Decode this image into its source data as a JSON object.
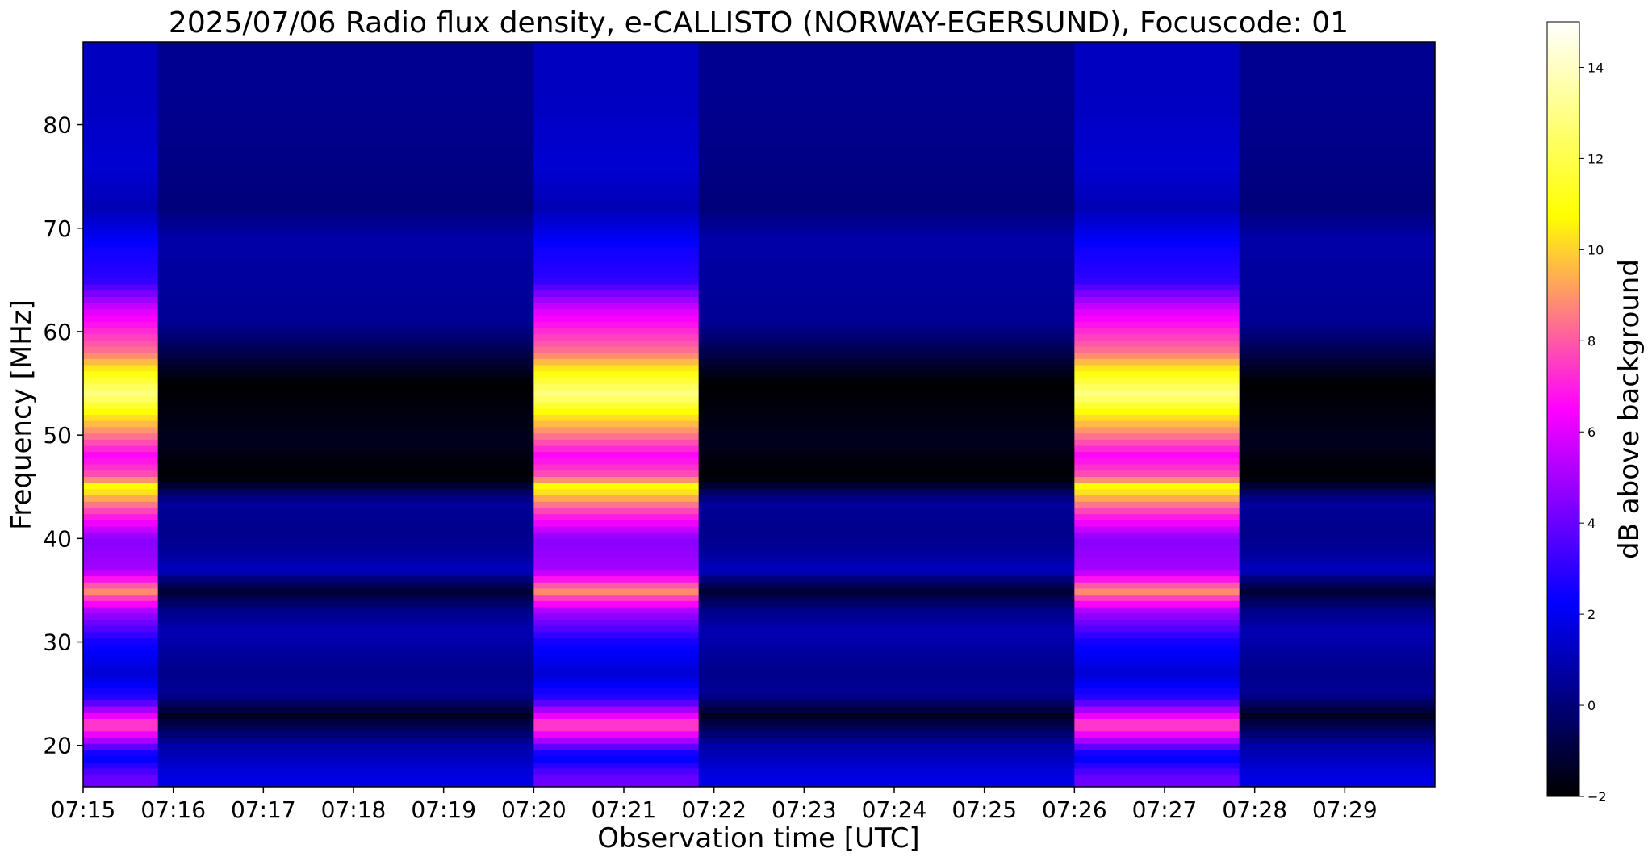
{
  "chart_data": {
    "type": "heatmap",
    "title": "2025/07/06  Radio flux density, e-CALLISTO (NORWAY-EGERSUND), Focuscode: 01",
    "xlabel": "Observation time [UTC]",
    "ylabel": "Frequency [MHz]",
    "colorbar_label": "dB above background",
    "x_range_minutes": [
      0,
      15
    ],
    "x_ticks": [
      {
        "minute": 0,
        "label": "07:15"
      },
      {
        "minute": 1,
        "label": "07:16"
      },
      {
        "minute": 2,
        "label": "07:17"
      },
      {
        "minute": 3,
        "label": "07:18"
      },
      {
        "minute": 4,
        "label": "07:19"
      },
      {
        "minute": 5,
        "label": "07:20"
      },
      {
        "minute": 6,
        "label": "07:21"
      },
      {
        "minute": 7,
        "label": "07:22"
      },
      {
        "minute": 8,
        "label": "07:23"
      },
      {
        "minute": 9,
        "label": "07:24"
      },
      {
        "minute": 10,
        "label": "07:25"
      },
      {
        "minute": 11,
        "label": "07:26"
      },
      {
        "minute": 12,
        "label": "07:27"
      },
      {
        "minute": 13,
        "label": "07:28"
      },
      {
        "minute": 14,
        "label": "07:29"
      }
    ],
    "ylim": [
      16,
      88
    ],
    "y_ticks": [
      {
        "value": 20,
        "label": "20"
      },
      {
        "value": 30,
        "label": "30"
      },
      {
        "value": 40,
        "label": "40"
      },
      {
        "value": 50,
        "label": "50"
      },
      {
        "value": 60,
        "label": "60"
      },
      {
        "value": 70,
        "label": "70"
      },
      {
        "value": 80,
        "label": "80"
      }
    ],
    "colorbar_range": [
      -2,
      15
    ],
    "colorbar_ticks": [
      {
        "value": -2,
        "label": "−2"
      },
      {
        "value": 0,
        "label": "0"
      },
      {
        "value": 2,
        "label": "2"
      },
      {
        "value": 4,
        "label": "4"
      },
      {
        "value": 6,
        "label": "6"
      },
      {
        "value": 8,
        "label": "8"
      },
      {
        "value": 10,
        "label": "10"
      },
      {
        "value": 12,
        "label": "12"
      },
      {
        "value": 14,
        "label": "14"
      }
    ],
    "colormap": [
      "#000000",
      "#0000ff",
      "#ff00ff",
      "#ffff00",
      "#ffffff"
    ],
    "calibration_segments_minutes": [
      [
        0,
        0.83
      ],
      [
        5.0,
        6.83
      ],
      [
        11.0,
        12.83
      ]
    ],
    "calibration_band_levels_db": [
      {
        "freq": 83,
        "db": 1.2
      },
      {
        "freq": 76,
        "db": 1.5
      },
      {
        "freq": 72,
        "db": 1.0
      },
      {
        "freq": 68,
        "db": 2.5
      },
      {
        "freq": 65,
        "db": 3.0
      },
      {
        "freq": 62,
        "db": 6.0
      },
      {
        "freq": 58,
        "db": 8.5
      },
      {
        "freq": 56,
        "db": 11.0
      },
      {
        "freq": 54,
        "db": 13.0
      },
      {
        "freq": 52,
        "db": 10.5
      },
      {
        "freq": 50.5,
        "db": 9.0
      },
      {
        "freq": 48,
        "db": 6.5
      },
      {
        "freq": 46,
        "db": 8.0
      },
      {
        "freq": 45,
        "db": 11.0
      },
      {
        "freq": 43,
        "db": 8.0
      },
      {
        "freq": 40,
        "db": 4.5
      },
      {
        "freq": 37,
        "db": 5.0
      },
      {
        "freq": 35,
        "db": 9.0
      },
      {
        "freq": 33,
        "db": 5.0
      },
      {
        "freq": 30,
        "db": 2.5
      },
      {
        "freq": 27,
        "db": 1.5
      },
      {
        "freq": 24.5,
        "db": 3.0
      },
      {
        "freq": 22,
        "db": 8.0
      },
      {
        "freq": 19,
        "db": 2.0
      },
      {
        "freq": 17,
        "db": 4.0
      }
    ],
    "background_band_levels_db": [
      {
        "freq": 83,
        "db": 0.4
      },
      {
        "freq": 76,
        "db": 0.2
      },
      {
        "freq": 72,
        "db": 0.0
      },
      {
        "freq": 69,
        "db": 0.8
      },
      {
        "freq": 65,
        "db": 0.6
      },
      {
        "freq": 61,
        "db": 0.5
      },
      {
        "freq": 55,
        "db": -2.0
      },
      {
        "freq": 49.5,
        "db": -1.5
      },
      {
        "freq": 46,
        "db": -2.0
      },
      {
        "freq": 43.5,
        "db": 0.6
      },
      {
        "freq": 41,
        "db": 0.3
      },
      {
        "freq": 39,
        "db": 0.5
      },
      {
        "freq": 37,
        "db": 1.2
      },
      {
        "freq": 35,
        "db": -1.2
      },
      {
        "freq": 33,
        "db": 0.3
      },
      {
        "freq": 31,
        "db": 1.0
      },
      {
        "freq": 29,
        "db": 0.6
      },
      {
        "freq": 27,
        "db": 0.3
      },
      {
        "freq": 25,
        "db": 0.5
      },
      {
        "freq": 23,
        "db": -1.5
      },
      {
        "freq": 20,
        "db": 0.8
      },
      {
        "freq": 17,
        "db": 1.8
      }
    ]
  }
}
